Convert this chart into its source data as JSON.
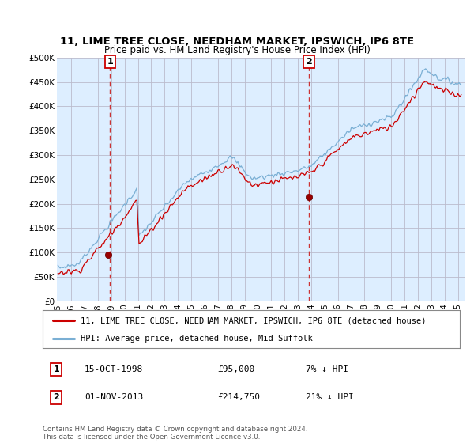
{
  "title": "11, LIME TREE CLOSE, NEEDHAM MARKET, IPSWICH, IP6 8TE",
  "subtitle": "Price paid vs. HM Land Registry's House Price Index (HPI)",
  "legend_house": "11, LIME TREE CLOSE, NEEDHAM MARKET, IPSWICH, IP6 8TE (detached house)",
  "legend_hpi": "HPI: Average price, detached house, Mid Suffolk",
  "annotation1_num": "1",
  "annotation1_date": "15-OCT-1998",
  "annotation1_price": "£95,000",
  "annotation1_hpi": "7% ↓ HPI",
  "annotation2_num": "2",
  "annotation2_date": "01-NOV-2013",
  "annotation2_price": "£214,750",
  "annotation2_hpi": "21% ↓ HPI",
  "footnote": "Contains HM Land Registry data © Crown copyright and database right 2024.\nThis data is licensed under the Open Government Licence v3.0.",
  "house_color": "#cc0000",
  "hpi_color": "#7aafd4",
  "plot_bg_color": "#ddeeff",
  "marker1_x_year": 1998.79,
  "marker1_y": 95000,
  "marker2_x_year": 2013.83,
  "marker2_y": 214750,
  "vline1_x_year": 1998.9,
  "vline2_x_year": 2013.83,
  "ylim": [
    0,
    500000
  ],
  "yticks": [
    0,
    50000,
    100000,
    150000,
    200000,
    250000,
    300000,
    350000,
    400000,
    450000,
    500000
  ],
  "ytick_labels": [
    "£0",
    "£50K",
    "£100K",
    "£150K",
    "£200K",
    "£250K",
    "£300K",
    "£350K",
    "£400K",
    "£450K",
    "£500K"
  ],
  "xtick_years": [
    1995,
    1996,
    1997,
    1998,
    1999,
    2000,
    2001,
    2002,
    2003,
    2004,
    2005,
    2006,
    2007,
    2008,
    2009,
    2010,
    2011,
    2012,
    2013,
    2014,
    2015,
    2016,
    2017,
    2018,
    2019,
    2020,
    2021,
    2022,
    2023,
    2024,
    2025
  ],
  "background_color": "#ffffff",
  "grid_color": "#bbbbcc"
}
